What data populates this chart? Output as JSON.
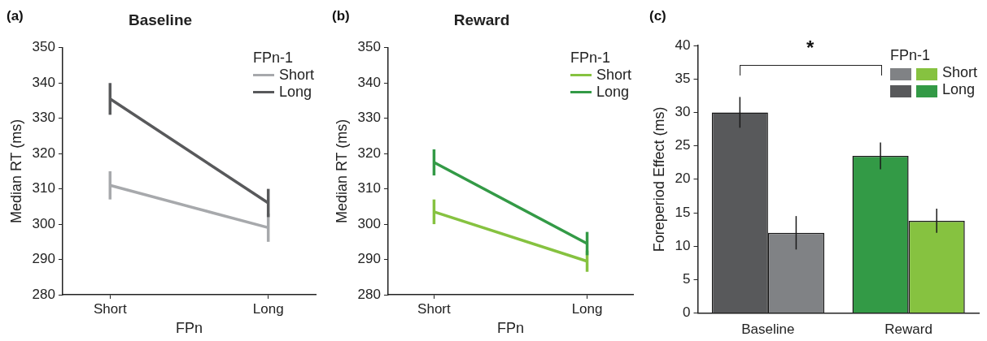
{
  "chart_data": [
    {
      "type": "line",
      "title": "Baseline",
      "xlabel": "FPn",
      "ylabel": "Median RT (ms)",
      "legend_title": "FPn-1",
      "categories": [
        "Short",
        "Long"
      ],
      "ylim": [
        280,
        350
      ],
      "yticks": [
        280,
        290,
        300,
        310,
        320,
        330,
        340,
        350
      ],
      "grid": false,
      "legend": "top right",
      "marker": "none",
      "annotations": [
        "(a)"
      ],
      "series": [
        {
          "name": "Short",
          "color": "#a7a9ac",
          "values": [
            311,
            299
          ],
          "errors": [
            4,
            4
          ]
        },
        {
          "name": "Long",
          "color": "#58595b",
          "values": [
            335.5,
            306
          ],
          "errors": [
            4.5,
            4
          ]
        }
      ]
    },
    {
      "type": "line",
      "title": "Reward",
      "xlabel": "FPn",
      "ylabel": "Median RT (ms)",
      "legend_title": "FPn-1",
      "categories": [
        "Short",
        "Long"
      ],
      "ylim": [
        280,
        350
      ],
      "yticks": [
        280,
        290,
        300,
        310,
        320,
        330,
        340,
        350
      ],
      "grid": false,
      "legend": "top right",
      "marker": "none",
      "annotations": [
        "(b)"
      ],
      "series": [
        {
          "name": "Short",
          "color": "#86c240",
          "values": [
            303.5,
            289.5
          ],
          "errors": [
            3.5,
            3
          ]
        },
        {
          "name": "Long",
          "color": "#339a46",
          "values": [
            317.5,
            294.5
          ],
          "errors": [
            3.7,
            3.3
          ]
        }
      ]
    },
    {
      "type": "bar",
      "ylabel": "Foreperiod Effect (ms)",
      "legend_title": "FPn-1",
      "categories": [
        "Baseline",
        "Reward"
      ],
      "ylim": [
        0,
        40
      ],
      "yticks": [
        0,
        5,
        10,
        15,
        20,
        25,
        30,
        35,
        40
      ],
      "grid": false,
      "legend": "top right",
      "annotations": [
        "(c)",
        "*"
      ],
      "series": [
        {
          "name": "Long",
          "colors": [
            "#58595b",
            "#339a46"
          ],
          "values": [
            30,
            23.5
          ],
          "errors": [
            2.3,
            2
          ]
        },
        {
          "name": "Short",
          "colors": [
            "#808285",
            "#86c240"
          ],
          "values": [
            12,
            13.8
          ],
          "errors": [
            2.5,
            1.8
          ]
        }
      ]
    }
  ]
}
